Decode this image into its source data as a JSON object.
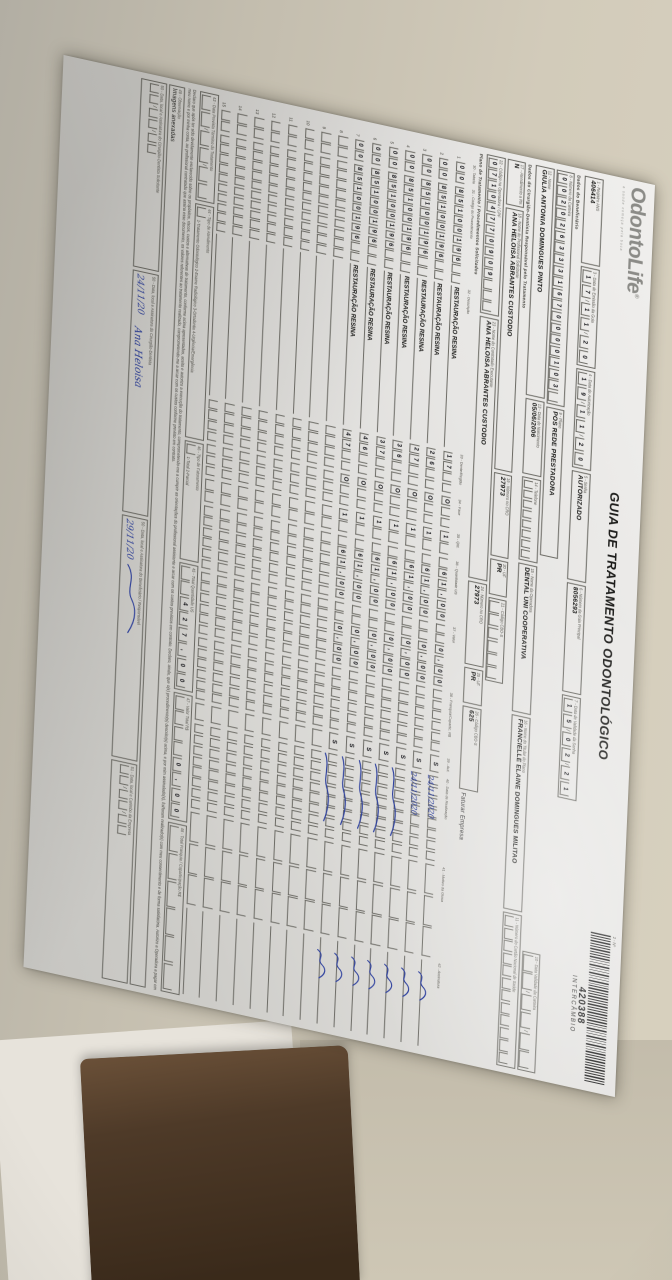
{
  "form": {
    "header": {
      "logo_text": "OdontoLife",
      "logo_reg": "®",
      "logo_tagline": "a saúde começa pela boca",
      "title": "GUIA DE TRATAMENTO ODONTOLÓGICO",
      "numero_label": "2 - Nº",
      "barcode_number": "420388",
      "barcode_sub": "INTERCÂMBIO",
      "registro_label": "1 - Registro ANS",
      "registro": "406414",
      "emissao_label": "3 - Data de Emissão da Guia",
      "emissao": "171120",
      "autorizacao_label": "4 - Data de Autorização",
      "autorizacao": "191120",
      "senha_label": "5 - Senha",
      "senha": "AUTORIZADO",
      "guia_principal_label": "6 - Número da Guia Principal",
      "guia_principal": "8056293",
      "validade_senha_label": "7 - Data de Validade da Senha",
      "validade_senha": "150221"
    },
    "beneficiario": {
      "section": "Dados do Beneficiário",
      "carteira_label": "8 - Número da Carteira",
      "carteira": "0020263331670000103",
      "plano_label": "9 - Plano",
      "plano": "POS REDE PRESTADORA",
      "validade_label": "10 - Data Validade da Carteira",
      "validade": "",
      "nome_label": "12 - Nome",
      "nome": "GIULIA ANTONIA DOMINGUES PINTO",
      "nascimento_label": "13 - Data de Nascimento",
      "nascimento": "05/06/2006",
      "telefone_label": "14 - Telefone",
      "telefone": "",
      "operadora_label": "15 - Nome da Operadora",
      "operadora": "DENTAL UNI COOPERATIVA",
      "cns_label": "11 - Número do Cartão Nacional de Saúde",
      "cns": "",
      "titular_label": "16 - Nome do Titular do Plano",
      "titular": "FRANCIELLE ELAINE DOMINGUES MILITAO"
    },
    "profissional": {
      "section": "Dados do Cirurgião-Dentista Responsável pelo Tratamento",
      "rn_label": "17 - Atendimento a RN",
      "rn": "N",
      "solicitante_label": "18 - Nome do Profissional Solicitante",
      "solicitante": "ANA HELOISA ABRANTES CUSTODIO",
      "cro1_label": "19 - Número no CRO",
      "cro1": "27973",
      "uf1_label": "20 - UF",
      "uf1": "PR",
      "cbos1_label": "21 - Código CBO-S",
      "cbos1": "",
      "codigo_label": "22 - Código na Operadora / CPF",
      "codigo": "07104770909",
      "executante_label": "23 - Nome do Contratado Executante",
      "executante": "ANA HELOISA ABRANTES CUSTODIO",
      "cro2_label": "24 - Número no CRO",
      "cro2": "27973",
      "uf2_label": "25 - UF",
      "uf2": "PR",
      "cbos2_label": "26 - Código CBO-S",
      "cbos2": "625",
      "cbos2_note": "Faturar Empresa"
    },
    "tabela": {
      "section": "Plano de Tratamento / Procedimentos Solicitados",
      "headers": [
        "30 - Tabela",
        "31 - Código do Procedimento",
        "32 - Descrição",
        "33 - Dente/Região",
        "34 - Face",
        "35 - Qtd.",
        "36 - Quantidade US",
        "37 - Valor",
        "38 - Franquia/Copartic. R$",
        "39 - Aut.",
        "40 - Data de Realização",
        "41 - Motivo da Glosa",
        "42 - Assinatura"
      ],
      "rows": [
        {
          "n": "1",
          "tabela": "00",
          "codigo": "85100196",
          "descricao": "RESTAURAÇÃO RESINA",
          "dente": "17",
          "face": "O",
          "qtd": "1",
          "us": "61,00",
          "valor": "0,00",
          "franquia": "",
          "aut": "S",
          "data": "24/11/2020",
          "stroke": false,
          "rubrica": true
        },
        {
          "n": "2",
          "tabela": "00",
          "codigo": "85100196",
          "descricao": "RESTAURAÇÃO RESINA",
          "dente": "26",
          "face": "O",
          "qtd": "1",
          "us": "61,00",
          "valor": "0,00",
          "franquia": "",
          "aut": "S",
          "data": "24/11/2020",
          "stroke": false,
          "rubrica": true
        },
        {
          "n": "3",
          "tabela": "00",
          "codigo": "85100196",
          "descricao": "RESTAURAÇÃO RESINA",
          "dente": "27",
          "face": "O",
          "qtd": "1",
          "us": "61,00",
          "valor": "0,00",
          "franquia": "",
          "aut": "S",
          "data": "",
          "stroke": true,
          "rubrica": true
        },
        {
          "n": "4",
          "tabela": "00",
          "codigo": "85100196",
          "descricao": "RESTAURAÇÃO RESINA",
          "dente": "36",
          "face": "O",
          "qtd": "1",
          "us": "61,00",
          "valor": "0,00",
          "franquia": "",
          "aut": "S",
          "data": "",
          "stroke": true,
          "rubrica": true
        },
        {
          "n": "5",
          "tabela": "00",
          "codigo": "85100196",
          "descricao": "RESTAURAÇÃO RESINA",
          "dente": "37",
          "face": "O",
          "qtd": "1",
          "us": "61,00",
          "valor": "0,00",
          "franquia": "",
          "aut": "S",
          "data": "",
          "stroke": true,
          "rubrica": true
        },
        {
          "n": "6",
          "tabela": "00",
          "codigo": "85100196",
          "descricao": "RESTAURAÇÃO RESINA",
          "dente": "46",
          "face": "O",
          "qtd": "1",
          "us": "61,00",
          "valor": "0,00",
          "franquia": "",
          "aut": "S",
          "data": "",
          "stroke": true,
          "rubrica": true
        },
        {
          "n": "7",
          "tabela": "00",
          "codigo": "85100196",
          "descricao": "RESTAURAÇÃO RESINA",
          "dente": "47",
          "face": "O",
          "qtd": "1",
          "us": "61,00",
          "valor": "0,00",
          "franquia": "",
          "aut": "S",
          "data": "",
          "stroke": true,
          "rubrica": true
        },
        {
          "n": "8"
        },
        {
          "n": "9"
        },
        {
          "n": "10"
        },
        {
          "n": "11"
        },
        {
          "n": "12"
        },
        {
          "n": "13"
        },
        {
          "n": "14"
        },
        {
          "n": "15"
        }
      ]
    },
    "rodape": {
      "termino_label": "43 - Data Prevista Término do Tratamento",
      "termino": "",
      "atendimento_label": "44 - Tipo de Atendimento",
      "atendimento": "",
      "atendimento_legenda": "1-Tratamento Odontológico  2-Exame Radiológico  3-Ortodontia  4-Urgência/Emergência",
      "faturamento_label": "46 - Tipo de Faturamento",
      "faturamento": "",
      "faturamento_legenda": "1-Total  2-Parcial",
      "total_us_label": "45 - Total Quantidade US",
      "total_us": "427,00",
      "valor_total_label": "47 - Valor Total R$",
      "valor_total": "0,00",
      "total_franquia_label": "48 - Total Franquia / Coparticipação R$",
      "total_franquia": "",
      "declaracao": "Declaro que após ter sido devidamente esclarecido sobre os propósitos, riscos, custos e alternativas de tratamento, conforme acima apresentados, aceito e autorizo a execução do tratamento, comprometendo-me a cumprir as orientações do profissional assistente e arcar com os custos previstos em contrato. Declaro, ainda, que o(s) procedimento(s) descrito(s) acima, e por mim assinalado(s), foi/foram realizado(s) com meu consentimento e de forma satisfatória. Autorizo a Operadora a pagar em meu nome e por minha conta, ao profissional contratado que assina esse documento, os valores referentes ao tratamento realizado, comprometendo-me a arcar com os custos conforme previsto em contrato.",
      "observacao_label": "49 - Observação",
      "observacao": "Imagens anexadas",
      "assin_solicitante_label": "50 - Data, local e Assinatura do Cirurgião-Dentista Solicitante",
      "assin_dentista_label": "50 - Data, local e Assinatura do Cirurgião-Dentista",
      "assin_dentista_data": "24/11/20",
      "assin_dentista_nome": "Ana Heloisa",
      "assin_beneficiario_label": "50 - Data, local e Assinatura do Beneficiário / Responsável",
      "assin_beneficiario_data": "29/11/20",
      "carimbo_label": "51 - Data, local e Carimbo da Empresa",
      "carimbo": ""
    }
  },
  "photo": {
    "ink_color": "#2c3f9e",
    "paper_color": "#e7e6e4",
    "background_color": "#c8c1b0",
    "dark_object_color": "#4e3a28"
  }
}
